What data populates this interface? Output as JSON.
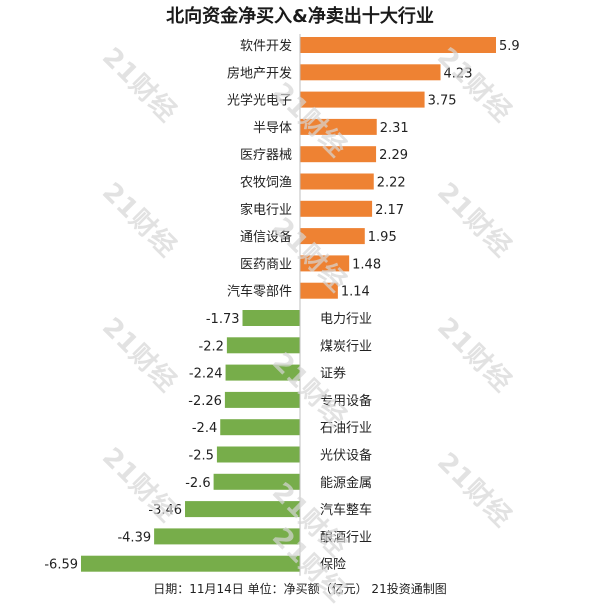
{
  "chart_data": {
    "type": "bar",
    "orientation": "horizontal",
    "title": "北向资金净买入&净卖出十大行业",
    "footer": "日期：11月14日 单位：净买额（亿元） 21投资通制图",
    "watermark": "21财经",
    "colors": {
      "positive": "#ee8233",
      "negative": "#77ad4a",
      "axis": "#bfbfbf",
      "text": "#222222"
    },
    "categories": [
      "软件开发",
      "房地产开发",
      "光学光电子",
      "半导体",
      "医疗器械",
      "农牧饲渔",
      "家电行业",
      "通信设备",
      "医药商业",
      "汽车零部件",
      "电力行业",
      "煤炭行业",
      "证券",
      "专用设备",
      "石油行业",
      "光伏设备",
      "能源金属",
      "汽车整车",
      "酿酒行业",
      "保险"
    ],
    "values": [
      5.9,
      4.23,
      3.75,
      2.31,
      2.29,
      2.22,
      2.17,
      1.95,
      1.48,
      1.14,
      -1.73,
      -2.2,
      -2.24,
      -2.26,
      -2.4,
      -2.5,
      -2.6,
      -3.46,
      -4.39,
      -6.59
    ],
    "value_labels": [
      "5.9",
      "4.23",
      "3.75",
      "2.31",
      "2.29",
      "2.22",
      "2.17",
      "1.95",
      "1.48",
      "1.14",
      "-1.73",
      "-2.2",
      "-2.24",
      "-2.26",
      "-2.4",
      "-2.5",
      "-2.6",
      "-3.46",
      "-4.39",
      "-6.59"
    ],
    "xlim": [
      -6.59,
      5.9
    ],
    "grid": false,
    "legend": "none"
  }
}
